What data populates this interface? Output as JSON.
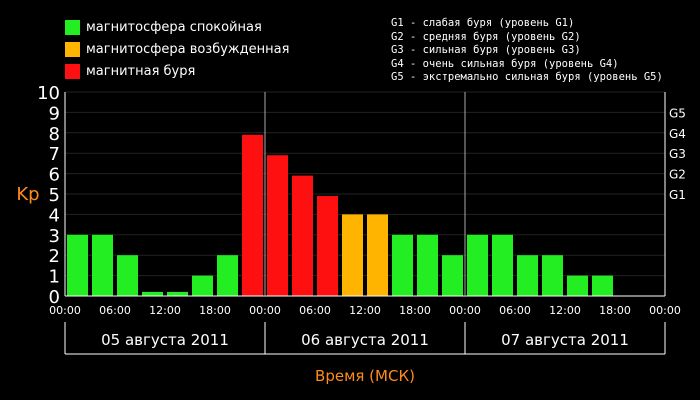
{
  "legend": [
    {
      "label": "магнитосфера спокойная",
      "color": "#22ee22"
    },
    {
      "label": "магнитосфера возбужденная",
      "color": "#ffb400"
    },
    {
      "label": "магнитная буря",
      "color": "#ff1010"
    }
  ],
  "storm_legend": [
    "G1 - слабая буря (уровень G1)",
    "G2 - средняя буря (уровень G2)",
    "G3 - сильная буря (уровень G3)",
    "G4 - очень сильная буря (уровень G4)",
    "G5 - экстремально сильная буря (уровень G5)"
  ],
  "chart_data": {
    "type": "bar",
    "ylabel": "Kp",
    "xlabel": "Время (МСК)",
    "ylim": [
      0,
      10
    ],
    "yticks": [
      "0",
      "1",
      "2",
      "3",
      "4",
      "5",
      "6",
      "7",
      "8",
      "9",
      "10"
    ],
    "right_ticks": [
      {
        "label": "G1",
        "kp": 5
      },
      {
        "label": "G2",
        "kp": 6
      },
      {
        "label": "G3",
        "kp": 7
      },
      {
        "label": "G4",
        "kp": 8
      },
      {
        "label": "G5",
        "kp": 9
      }
    ],
    "xticks": [
      "00:00",
      "06:00",
      "12:00",
      "18:00",
      "00:00",
      "06:00",
      "12:00",
      "18:00",
      "00:00",
      "06:00",
      "12:00",
      "18:00",
      "00:00"
    ],
    "days": [
      "05 августа 2011",
      "06 августа 2011",
      "07 августа 2011"
    ],
    "values": [
      3,
      3,
      2,
      0.2,
      0.2,
      1,
      2,
      7.9,
      6.9,
      5.9,
      4.9,
      4,
      4,
      3,
      3,
      2,
      3,
      3,
      2,
      2,
      1,
      1,
      null,
      null
    ],
    "levels": [
      "quiet",
      "quiet",
      "quiet",
      "quiet",
      "quiet",
      "quiet",
      "quiet",
      "storm",
      "storm",
      "storm",
      "storm",
      "active",
      "active",
      "quiet",
      "quiet",
      "quiet",
      "quiet",
      "quiet",
      "quiet",
      "quiet",
      "quiet",
      "quiet",
      null,
      null
    ],
    "colors": {
      "quiet": "#22ee22",
      "active": "#ffb400",
      "storm": "#ff1010",
      "axis_label": "#ff8c1a"
    }
  }
}
